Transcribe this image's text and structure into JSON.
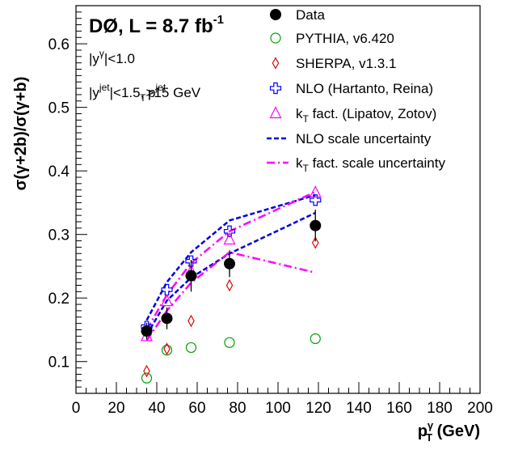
{
  "chart_data": {
    "type": "scatter",
    "experiment": "DØ, L = 8.7 fb",
    "experiment_sup": "-1",
    "cuts": [
      {
        "parts": [
          {
            "t": "|y"
          },
          {
            "t": "γ",
            "pos": "sup"
          },
          {
            "t": "|<1.0"
          }
        ]
      },
      {
        "parts": [
          {
            "t": "|y"
          },
          {
            "t": "jet",
            "pos": "sup"
          },
          {
            "t": "|<1.5, p"
          },
          {
            "t": "jet",
            "pos": "sup"
          },
          {
            "t": "T",
            "pos": "sub"
          },
          {
            "t": ">15 GeV"
          }
        ]
      }
    ],
    "xlabel": "p",
    "xlabel_sup": "γ",
    "xlabel_sub": "T",
    "xlabel_unit": " (GeV)",
    "ylabel": "σ(γ+2b)/σ(γ+b)",
    "xlim": [
      0,
      200
    ],
    "ylim": [
      0.05,
      0.66
    ],
    "x_ticks": [
      0,
      20,
      40,
      60,
      80,
      100,
      120,
      140,
      160,
      180,
      200
    ],
    "y_ticks": [
      0.1,
      0.2,
      0.3,
      0.4,
      0.5,
      0.6
    ],
    "legend_position": "top-right",
    "series": [
      {
        "name": "Data",
        "marker": "filled-circle",
        "color": "#000000",
        "x": [
          35,
          45,
          57,
          76,
          118.5
        ],
        "y": [
          0.148,
          0.168,
          0.235,
          0.254,
          0.314
        ],
        "yerr": [
          0.013,
          0.017,
          0.025,
          0.021,
          0.025
        ]
      },
      {
        "name": "PYTHIA, v6.420",
        "marker": "open-circle",
        "color": "#00a000",
        "x": [
          35,
          45,
          57,
          76,
          118.5
        ],
        "y": [
          0.074,
          0.118,
          0.122,
          0.13,
          0.136
        ]
      },
      {
        "name": "SHERPA, v1.3.1",
        "marker": "open-diamond",
        "color": "#e00000",
        "x": [
          35,
          45,
          57,
          76,
          118.5
        ],
        "y": [
          0.085,
          0.12,
          0.164,
          0.22,
          0.287
        ]
      },
      {
        "name": "NLO (Hartanto, Reina)",
        "marker": "open-cross",
        "color": "#0000ff",
        "x": [
          35,
          45,
          57,
          76,
          118.5
        ],
        "y": [
          0.155,
          0.213,
          0.258,
          0.305,
          0.354
        ]
      },
      {
        "name": "k",
        "name_sub": "T",
        "name_rest": " fact. (Lipatov, Zotov)",
        "marker": "open-triangle",
        "color": "#ff00ff",
        "x": [
          35,
          45,
          57,
          76,
          118.5
        ],
        "y": [
          0.14,
          0.195,
          0.242,
          0.292,
          0.366
        ]
      }
    ],
    "bands": [
      {
        "name": "NLO scale uncertainty",
        "color": "#0000dd",
        "style": "dashed",
        "x": [
          35,
          45,
          57,
          76,
          118.5
        ],
        "upper": [
          0.165,
          0.225,
          0.272,
          0.322,
          0.362
        ],
        "lower": [
          0.142,
          0.196,
          0.232,
          0.27,
          0.334
        ]
      },
      {
        "name": "k",
        "name_sub": "T",
        "name_rest": " fact. scale uncertainty",
        "color": "#ff00ff",
        "style": "dashdot",
        "x": [
          35,
          45,
          57,
          76,
          118.5
        ],
        "upper": [
          0.15,
          0.205,
          0.255,
          0.305,
          0.367
        ],
        "lower": [
          0.133,
          0.18,
          0.224,
          0.272,
          0.24
        ]
      }
    ]
  }
}
